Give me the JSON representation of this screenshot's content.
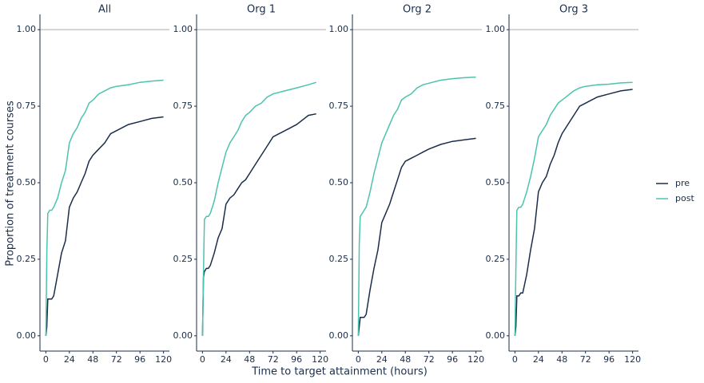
{
  "chart_data": {
    "type": "line",
    "xlabel": "Time to target attainment (hours)",
    "ylabel": "Proportion of treatment courses",
    "xlim": [
      -6,
      126
    ],
    "xticks": [
      0,
      24,
      48,
      72,
      96,
      120
    ],
    "ylim": [
      -0.05,
      1.05
    ],
    "yticks": [
      {
        "value": 0,
        "label": "0.00"
      },
      {
        "value": 0.25,
        "label": "0.25"
      },
      {
        "value": 0.5,
        "label": "0.50"
      },
      {
        "value": 0.75,
        "label": "0.75"
      },
      {
        "value": 1,
        "label": "1.00"
      }
    ],
    "reference_line": 1,
    "legend": "right",
    "series": [
      {
        "name": "pre",
        "color": "#1b2d4a"
      },
      {
        "name": "post",
        "color": "#4cc3ae"
      }
    ],
    "panels": [
      {
        "title": "All",
        "x": [
          0,
          1,
          2,
          4,
          6,
          8,
          12,
          16,
          20,
          24,
          28,
          32,
          36,
          40,
          44,
          48,
          54,
          60,
          66,
          72,
          84,
          96,
          108,
          120
        ],
        "series": [
          {
            "values": [
              0,
              0.03,
              0.12,
              0.12,
              0.12,
              0.13,
              0.2,
              0.27,
              0.31,
              0.42,
              0.45,
              0.47,
              0.5,
              0.53,
              0.57,
              0.59,
              0.61,
              0.63,
              0.66,
              0.67,
              0.69,
              0.7,
              0.71,
              0.715
            ]
          },
          {
            "values": [
              0,
              0.27,
              0.4,
              0.41,
              0.41,
              0.42,
              0.45,
              0.5,
              0.54,
              0.63,
              0.66,
              0.68,
              0.71,
              0.73,
              0.76,
              0.77,
              0.79,
              0.8,
              0.81,
              0.815,
              0.82,
              0.828,
              0.832,
              0.835
            ]
          }
        ]
      },
      {
        "title": "Org 1",
        "x": [
          0,
          1,
          2,
          4,
          6,
          8,
          12,
          16,
          20,
          24,
          28,
          32,
          36,
          40,
          44,
          48,
          54,
          60,
          66,
          72,
          84,
          96,
          108,
          116
        ],
        "series": [
          {
            "values": [
              0,
              0.19,
              0.21,
              0.22,
              0.22,
              0.23,
              0.27,
              0.32,
              0.35,
              0.43,
              0.45,
              0.46,
              0.48,
              0.5,
              0.51,
              0.53,
              0.56,
              0.59,
              0.62,
              0.65,
              0.67,
              0.69,
              0.72,
              0.725
            ]
          },
          {
            "values": [
              0,
              0.2,
              0.38,
              0.39,
              0.39,
              0.4,
              0.44,
              0.5,
              0.55,
              0.6,
              0.63,
              0.65,
              0.67,
              0.7,
              0.72,
              0.73,
              0.75,
              0.76,
              0.78,
              0.79,
              0.8,
              0.81,
              0.82,
              0.828
            ]
          }
        ]
      },
      {
        "title": "Org 2",
        "x": [
          0,
          1,
          2,
          4,
          6,
          8,
          12,
          16,
          20,
          24,
          28,
          32,
          36,
          40,
          44,
          48,
          54,
          60,
          66,
          72,
          84,
          96,
          108,
          120
        ],
        "series": [
          {
            "values": [
              0,
              0.03,
              0.06,
              0.06,
              0.06,
              0.07,
              0.15,
              0.22,
              0.28,
              0.37,
              0.4,
              0.43,
              0.47,
              0.51,
              0.55,
              0.57,
              0.58,
              0.59,
              0.6,
              0.61,
              0.625,
              0.635,
              0.64,
              0.645
            ]
          },
          {
            "values": [
              0,
              0.3,
              0.39,
              0.4,
              0.41,
              0.42,
              0.47,
              0.53,
              0.58,
              0.63,
              0.66,
              0.69,
              0.72,
              0.74,
              0.77,
              0.78,
              0.79,
              0.81,
              0.82,
              0.825,
              0.835,
              0.84,
              0.843,
              0.845
            ]
          }
        ]
      },
      {
        "title": "Org 3",
        "x": [
          0,
          1,
          2,
          4,
          6,
          8,
          12,
          16,
          20,
          24,
          28,
          32,
          36,
          40,
          44,
          48,
          54,
          60,
          66,
          72,
          84,
          96,
          108,
          120
        ],
        "series": [
          {
            "values": [
              0,
              0.03,
              0.13,
              0.13,
              0.14,
              0.14,
              0.2,
              0.28,
              0.35,
              0.47,
              0.5,
              0.52,
              0.56,
              0.59,
              0.63,
              0.66,
              0.69,
              0.72,
              0.75,
              0.76,
              0.78,
              0.79,
              0.8,
              0.805
            ]
          },
          {
            "values": [
              0,
              0.22,
              0.41,
              0.42,
              0.42,
              0.43,
              0.47,
              0.52,
              0.58,
              0.65,
              0.67,
              0.69,
              0.72,
              0.74,
              0.76,
              0.77,
              0.785,
              0.8,
              0.81,
              0.815,
              0.82,
              0.822,
              0.826,
              0.828
            ]
          }
        ]
      }
    ]
  }
}
